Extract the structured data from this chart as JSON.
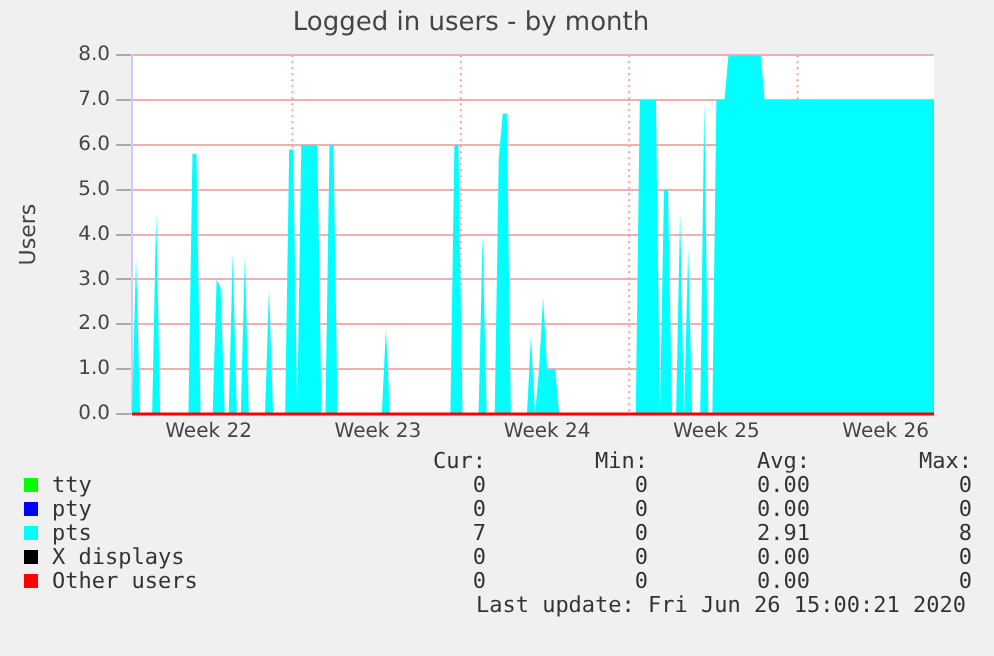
{
  "chart_data": {
    "type": "area",
    "title": "Logged in users - by month",
    "ylabel": "Users",
    "categories": [
      null,
      null,
      null,
      null,
      null,
      null,
      null,
      null,
      null,
      null,
      null,
      null,
      null,
      null,
      null,
      null,
      null,
      null,
      null,
      "Week 22",
      null,
      null,
      null,
      null,
      null,
      null,
      null,
      null,
      null,
      null,
      null,
      null,
      null,
      null,
      null,
      null,
      null,
      null,
      null,
      null,
      null,
      null,
      null,
      null,
      null,
      null,
      null,
      null,
      null,
      null,
      null,
      null,
      null,
      null,
      null,
      null,
      null,
      null,
      null,
      null,
      null,
      "Week 23",
      null,
      null,
      null,
      null,
      null,
      null,
      null,
      null,
      null,
      null,
      null,
      null,
      null,
      null,
      null,
      null,
      null,
      null,
      null,
      null,
      null,
      null,
      null,
      null,
      null,
      null,
      null,
      null,
      null,
      null,
      null,
      null,
      null,
      null,
      null,
      null,
      null,
      null,
      null,
      null,
      null,
      "Week 24",
      null,
      null,
      null,
      null,
      null,
      null,
      null,
      null,
      null,
      null,
      null,
      null,
      null,
      null,
      null,
      null,
      null,
      null,
      null,
      null,
      null,
      null,
      null,
      null,
      null,
      null,
      null,
      null,
      null,
      null,
      null,
      null,
      null,
      null,
      null,
      null,
      null,
      null,
      null,
      null,
      null,
      "Week 25",
      null,
      null,
      null,
      null,
      null,
      null,
      null,
      null,
      null,
      null,
      null,
      null,
      null,
      null,
      null,
      null,
      null,
      null,
      null,
      null,
      null,
      null,
      null,
      null,
      null,
      null,
      null,
      null,
      null,
      null,
      null,
      null,
      null,
      null,
      null,
      null,
      null,
      null,
      null,
      null,
      null,
      "Week 26",
      null,
      null,
      null,
      null,
      null,
      null,
      null,
      null,
      null,
      null,
      null,
      null
    ],
    "ylim": [
      0,
      8
    ],
    "yticks": [
      {
        "value": 0,
        "label": "0.0"
      },
      {
        "value": 1,
        "label": "1.0"
      },
      {
        "value": 2,
        "label": "2.0"
      },
      {
        "value": 3,
        "label": "3.0"
      },
      {
        "value": 4,
        "label": "4.0"
      },
      {
        "value": 5,
        "label": "5.0"
      },
      {
        "value": 6,
        "label": "6.0"
      },
      {
        "value": 7,
        "label": "7.0"
      },
      {
        "value": 8,
        "label": "8.0"
      }
    ],
    "grid": "y",
    "legend": "bottom",
    "series": [
      {
        "name": "tty",
        "type": "line",
        "color": "#00ff00",
        "values": [
          null,
          null,
          null,
          null,
          null,
          null,
          null,
          null,
          null,
          null,
          null,
          null,
          null,
          null,
          null,
          null,
          null,
          null,
          null,
          null,
          null,
          null,
          null,
          null,
          null,
          null,
          null,
          null,
          null,
          null,
          null,
          null,
          null,
          null,
          null,
          null,
          null,
          null,
          null,
          null,
          null,
          null,
          null,
          null,
          null,
          null,
          null,
          null,
          null,
          null,
          null,
          null,
          null,
          null,
          null,
          null,
          null,
          null,
          null,
          null,
          null,
          null,
          null,
          null,
          null,
          null,
          null,
          null,
          null,
          null,
          null,
          null,
          null,
          null,
          null,
          null,
          null,
          null,
          null,
          null,
          null,
          null,
          null,
          null,
          null,
          null,
          null,
          null,
          null,
          null,
          null,
          null,
          null,
          null,
          null,
          null,
          null,
          null,
          null,
          null,
          null,
          null,
          null,
          null,
          null,
          null,
          null,
          null,
          null,
          null,
          null,
          null,
          null,
          null,
          null,
          null,
          null,
          null,
          null,
          null,
          null,
          null,
          null,
          null,
          null,
          null,
          null,
          null,
          null,
          null,
          null,
          null,
          null,
          null,
          null,
          null,
          null,
          null,
          null,
          null,
          null,
          null,
          null,
          null,
          null,
          null,
          null,
          null,
          null,
          null,
          null,
          null,
          null,
          null,
          null,
          null,
          null,
          null,
          null,
          null,
          null,
          null,
          null,
          null,
          null,
          null,
          null,
          null,
          null,
          null,
          null,
          null,
          null,
          null,
          null,
          null,
          null,
          null,
          null,
          null,
          null,
          null,
          null,
          null,
          null,
          null,
          null,
          null,
          null,
          null,
          null,
          null,
          null,
          null,
          null,
          null,
          null,
          null,
          null,
          null
        ]
      },
      {
        "name": "pty",
        "type": "line",
        "color": "#0000ff",
        "values": [
          null,
          null,
          null,
          null,
          null,
          null,
          null,
          null,
          null,
          null,
          null,
          null,
          null,
          null,
          null,
          null,
          null,
          null,
          null,
          null,
          null,
          null,
          null,
          null,
          null,
          null,
          null,
          null,
          null,
          null,
          null,
          null,
          null,
          null,
          null,
          null,
          null,
          null,
          null,
          null,
          null,
          null,
          null,
          null,
          null,
          null,
          null,
          null,
          null,
          null,
          null,
          null,
          null,
          null,
          null,
          null,
          null,
          null,
          null,
          null,
          null,
          null,
          null,
          null,
          null,
          null,
          null,
          null,
          null,
          null,
          null,
          null,
          null,
          null,
          null,
          null,
          null,
          null,
          null,
          null,
          null,
          null,
          null,
          null,
          null,
          null,
          null,
          null,
          null,
          null,
          null,
          null,
          null,
          null,
          null,
          null,
          null,
          null,
          null,
          null,
          null,
          null,
          null,
          null,
          null,
          null,
          null,
          null,
          null,
          null,
          null,
          null,
          null,
          null,
          null,
          null,
          null,
          null,
          null,
          null,
          null,
          null,
          null,
          null,
          null,
          null,
          null,
          null,
          null,
          null,
          null,
          null,
          null,
          null,
          null,
          null,
          null,
          null,
          null,
          null,
          null,
          null,
          null,
          null,
          null,
          null,
          null,
          null,
          null,
          null,
          null,
          null,
          null,
          null,
          null,
          null,
          null,
          null,
          null,
          null,
          null,
          null,
          null,
          null,
          null,
          null,
          null,
          null,
          null,
          null,
          null,
          null,
          null,
          null,
          null,
          null,
          null,
          null,
          null,
          null,
          null,
          null,
          null,
          null,
          null,
          null,
          null,
          null,
          null,
          null,
          null,
          null,
          null,
          null,
          null,
          null,
          null,
          null,
          null,
          null
        ]
      },
      {
        "name": "pts",
        "color": "#00ffff",
        "values": [
          0,
          3.5,
          0,
          0,
          0,
          0,
          4.5,
          0,
          0,
          0,
          0,
          0,
          0,
          0,
          0,
          5.8,
          5.8,
          0,
          0,
          0,
          0,
          3.0,
          2.8,
          0,
          0,
          3.6,
          0,
          0,
          3.5,
          0,
          0,
          0,
          0,
          0,
          2.8,
          0,
          0,
          0,
          0,
          5.9,
          5.9,
          0,
          6.0,
          6.0,
          6.0,
          6.0,
          6.0,
          0,
          0,
          6.0,
          6.0,
          0,
          0,
          0,
          0,
          0,
          0,
          0,
          0,
          0,
          0,
          0,
          0,
          1.9,
          0,
          0,
          0,
          0,
          0,
          0,
          0,
          0,
          0,
          0,
          0,
          0,
          0,
          0,
          0,
          0,
          6.0,
          6.0,
          0,
          0,
          0,
          0,
          0,
          4.0,
          0,
          0,
          0,
          5.7,
          6.7,
          6.7,
          0,
          0,
          0,
          0,
          0,
          1.75,
          0,
          1.0,
          2.6,
          1.0,
          1.0,
          1.0,
          0,
          0,
          0,
          0,
          0,
          0,
          0,
          0,
          0,
          0,
          0,
          0,
          0,
          0,
          0,
          0,
          0,
          0,
          0,
          0,
          7.0,
          7.0,
          7.0,
          7.0,
          7.0,
          0,
          5.0,
          5.0,
          0,
          0,
          4.5,
          0,
          3.7,
          0,
          0,
          0,
          7.0,
          0,
          0,
          7.0,
          7.0,
          7.0,
          8.0,
          8.0,
          8.0,
          8.0,
          8.0,
          8.0,
          8.0,
          8.0,
          8.0,
          7.0,
          7.0,
          7.0,
          7.0,
          7.0,
          7.0,
          7.0,
          7.0,
          7.0,
          7.0,
          7.0,
          7.0,
          7.0,
          7.0,
          7.0,
          7.0,
          7.0,
          7.0,
          7.0,
          7.0,
          7.0,
          7.0,
          7.0,
          7.0,
          7.0,
          7.0,
          7.0,
          7.0,
          7.0,
          7.0,
          7.0,
          7.0,
          7.0,
          7.0,
          7.0,
          7.0,
          7.0,
          7.0,
          7.0,
          7.0,
          7.0,
          7.0,
          7.0
        ]
      },
      {
        "name": "X displays",
        "type": "line",
        "color": "#000000",
        "values": [
          null,
          null,
          null,
          null,
          null,
          null,
          null,
          null,
          null,
          null,
          null,
          null,
          null,
          null,
          null,
          null,
          null,
          null,
          null,
          null,
          null,
          null,
          null,
          null,
          null,
          null,
          null,
          null,
          null,
          null,
          null,
          null,
          null,
          null,
          null,
          null,
          null,
          null,
          null,
          null,
          null,
          null,
          null,
          null,
          null,
          null,
          null,
          null,
          null,
          null,
          null,
          null,
          null,
          null,
          null,
          null,
          null,
          null,
          null,
          null,
          null,
          null,
          null,
          null,
          null,
          null,
          null,
          null,
          null,
          null,
          null,
          null,
          null,
          null,
          null,
          null,
          null,
          null,
          null,
          null,
          null,
          null,
          null,
          null,
          null,
          null,
          null,
          null,
          null,
          null,
          null,
          null,
          null,
          null,
          null,
          null,
          null,
          null,
          null,
          null,
          null,
          null,
          null,
          null,
          null,
          null,
          null,
          null,
          null,
          null,
          null,
          null,
          null,
          null,
          null,
          null,
          null,
          null,
          null,
          null,
          null,
          null,
          null,
          null,
          null,
          null,
          null,
          null,
          null,
          null,
          null,
          null,
          null,
          null,
          null,
          null,
          null,
          null,
          null,
          null,
          null,
          null,
          null,
          null,
          null,
          null,
          null,
          null,
          null,
          null,
          null,
          null,
          null,
          null,
          null,
          null,
          null,
          null,
          null,
          null,
          null,
          null,
          null,
          null,
          null,
          null,
          null,
          null,
          null,
          null,
          null,
          null,
          null,
          null,
          null,
          null,
          null,
          null,
          null,
          null,
          null,
          null,
          null,
          null,
          null,
          null,
          null,
          null,
          null,
          null,
          null,
          null,
          null,
          null,
          null,
          null,
          null,
          null,
          null,
          null
        ]
      },
      {
        "name": "Other users",
        "type": "line",
        "color": "#ff0000",
        "values": [
          0,
          0,
          0,
          0,
          0,
          0,
          0,
          0,
          0,
          0,
          0,
          0,
          0,
          0,
          0,
          0,
          0,
          0,
          0,
          0,
          0,
          0,
          0,
          0,
          0,
          0,
          0,
          0,
          0,
          0,
          0,
          0,
          0,
          0,
          0,
          0,
          0,
          0,
          0,
          0,
          0,
          0,
          0,
          0,
          0,
          0,
          0,
          0,
          0,
          0,
          0,
          0,
          0,
          0,
          0,
          0,
          0,
          0,
          0,
          0,
          0,
          0,
          0,
          0,
          0,
          0,
          0,
          0,
          0,
          0,
          0,
          0,
          0,
          0,
          0,
          0,
          0,
          0,
          0,
          0,
          0,
          0,
          0,
          0,
          0,
          0,
          0,
          0,
          0,
          0,
          0,
          0,
          0,
          0,
          0,
          0,
          0,
          0,
          0,
          0,
          0,
          0,
          0,
          0,
          0,
          0,
          0,
          0,
          0,
          0,
          0,
          0,
          0,
          0,
          0,
          0,
          0,
          0,
          0,
          0,
          0,
          0,
          0,
          0,
          0,
          0,
          0,
          0,
          0,
          0,
          0,
          0,
          0,
          0,
          0,
          0,
          0,
          0,
          0,
          0,
          0,
          0,
          0,
          0,
          0,
          0,
          0,
          0,
          0,
          0,
          0,
          0,
          0,
          0,
          0,
          0,
          0,
          0,
          0,
          0,
          0,
          0,
          0,
          0,
          0,
          0,
          0,
          0,
          0,
          0,
          0,
          0,
          0,
          0,
          0,
          0,
          0,
          0,
          0,
          0,
          0,
          0,
          0,
          0,
          0,
          0,
          0,
          0,
          0,
          0,
          0,
          0,
          0,
          0,
          0,
          0,
          0,
          0,
          0,
          0
        ]
      }
    ],
    "annotations": [
      "Cur:",
      "Min:",
      "Avg:",
      "Max:",
      "0",
      "0",
      "0.00",
      "0",
      "0",
      "0",
      "0.00",
      "0",
      "7",
      "0",
      "2.91",
      "8",
      "0",
      "0",
      "0.00",
      "0",
      "0",
      "0",
      "0.00",
      "0",
      "Last update: Fri Jun 26 15:00:21 2020"
    ]
  }
}
